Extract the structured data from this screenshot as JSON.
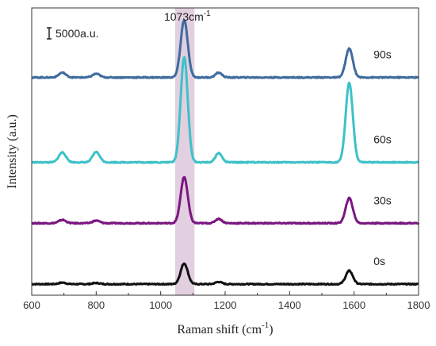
{
  "chart_data": {
    "type": "line",
    "title": "",
    "xlabel": "Raman shift",
    "xlabel_unit": "(cm",
    "xlabel_unit_sup": "-1",
    "xlabel_unit_close": ")",
    "ylabel": "Intensity (a.u.)",
    "xlim": [
      600,
      1800
    ],
    "xticks": [
      600,
      800,
      1000,
      1200,
      1400,
      1600,
      1800
    ],
    "xtick_labels": [
      "600",
      "800",
      "1000",
      "1200",
      "1400",
      "1600",
      "1800"
    ],
    "yticks_shown": false,
    "grid": false,
    "legend": "none",
    "scale_bar_label": "5000a.u.",
    "highlight": {
      "x_center": 1073,
      "x_range": [
        1045,
        1105
      ],
      "color": "#e2cfe0"
    },
    "highlight_label": "1073cm",
    "highlight_label_sup": "-1",
    "peaks": [
      {
        "x": 695,
        "width": 11
      },
      {
        "x": 800,
        "width": 11
      },
      {
        "x": 1073,
        "width": 11
      },
      {
        "x": 1180,
        "width": 10
      },
      {
        "x": 1585,
        "width": 11
      }
    ],
    "series": [
      {
        "label": "0s",
        "color": "#111111",
        "offset": 0,
        "peak_heights": [
          400,
          300,
          5600,
          600,
          3600
        ],
        "series_label_x": 1680
      },
      {
        "label": "30s",
        "color": "#7a1680",
        "offset": 16500,
        "peak_heights": [
          900,
          700,
          12500,
          1200,
          6800
        ],
        "series_label_x": 1680
      },
      {
        "label": "60s",
        "color": "#3cc1c8",
        "offset": 33000,
        "peak_heights": [
          2700,
          2800,
          28500,
          2500,
          21500
        ],
        "series_label_x": 1680
      },
      {
        "label": "90s",
        "color": "#3f6b9e",
        "offset": 56000,
        "peak_heights": [
          1300,
          1000,
          15500,
          1300,
          7800
        ],
        "series_label_x": 1680
      }
    ]
  }
}
